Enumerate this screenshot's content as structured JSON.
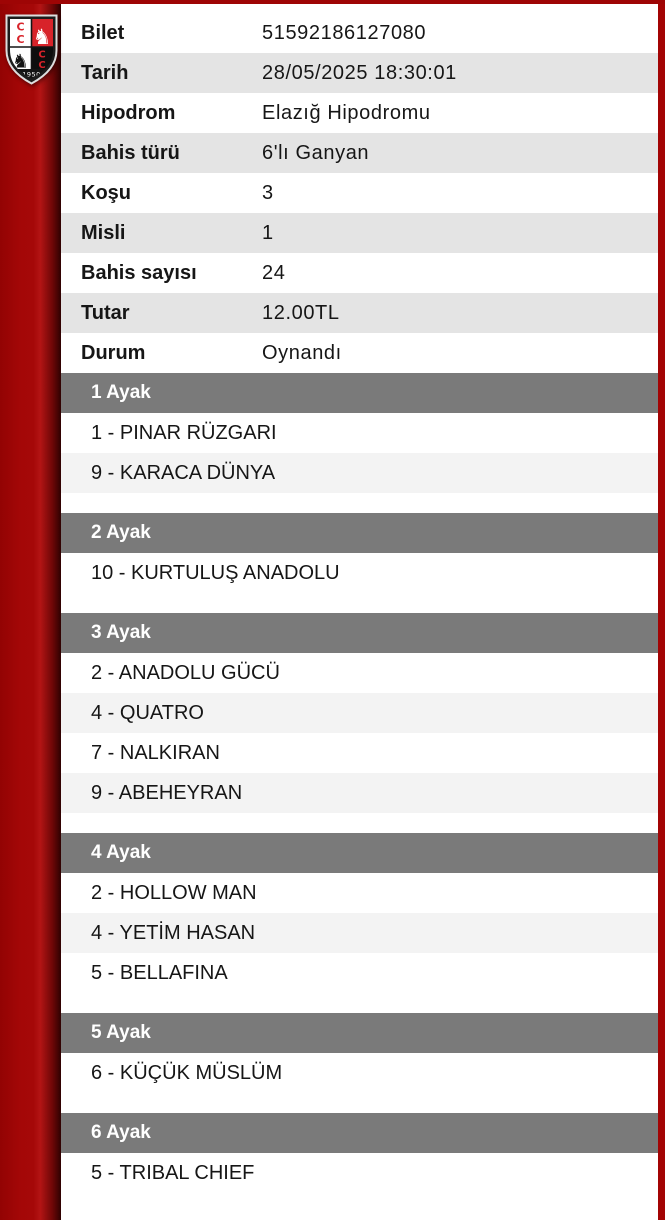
{
  "logo": {
    "letters": [
      "C",
      "C",
      "C",
      "C"
    ],
    "year": "1950",
    "knight_glyph": "♞"
  },
  "ticket": {
    "fields": [
      {
        "label": "Bilet",
        "value": "51592186127080"
      },
      {
        "label": "Tarih",
        "value": "28/05/2025 18:30:01"
      },
      {
        "label": "Hipodrom",
        "value": "Elazığ Hipodromu"
      },
      {
        "label": "Bahis türü",
        "value": "6'lı Ganyan"
      },
      {
        "label": "Koşu",
        "value": "3"
      },
      {
        "label": "Misli",
        "value": "1"
      },
      {
        "label": "Bahis sayısı",
        "value": "24"
      },
      {
        "label": "Tutar",
        "value": "12.00TL"
      },
      {
        "label": "Durum",
        "value": "Oynandı"
      }
    ]
  },
  "legs": [
    {
      "title": "1 Ayak",
      "horses": [
        "1 - PINAR RÜZGARI",
        "9 - KARACA DÜNYA"
      ]
    },
    {
      "title": "2 Ayak",
      "horses": [
        "10 - KURTULUŞ ANADOLU"
      ]
    },
    {
      "title": "3 Ayak",
      "horses": [
        "2 - ANADOLU GÜCÜ",
        "4 - QUATRO",
        "7 - NALKIRAN",
        "9 - ABEHEYRAN"
      ]
    },
    {
      "title": "4 Ayak",
      "horses": [
        "2 - HOLLOW MAN",
        "4 - YETİM HASAN",
        "5 - BELLAFINA"
      ]
    },
    {
      "title": "5 Ayak",
      "horses": [
        "6 - KÜÇÜK MÜSLÜM"
      ]
    },
    {
      "title": "6 Ayak",
      "horses": [
        "5 - TRIBAL CHIEF"
      ]
    }
  ],
  "colors": {
    "brand_red": "#a30404",
    "logo_red": "#d8232a",
    "section_header_gray": "#7a7a7a",
    "kv_alt_row_gray": "#e4e4e4",
    "horse_alt_row_gray": "#f3f3f3",
    "text": "#161616"
  }
}
